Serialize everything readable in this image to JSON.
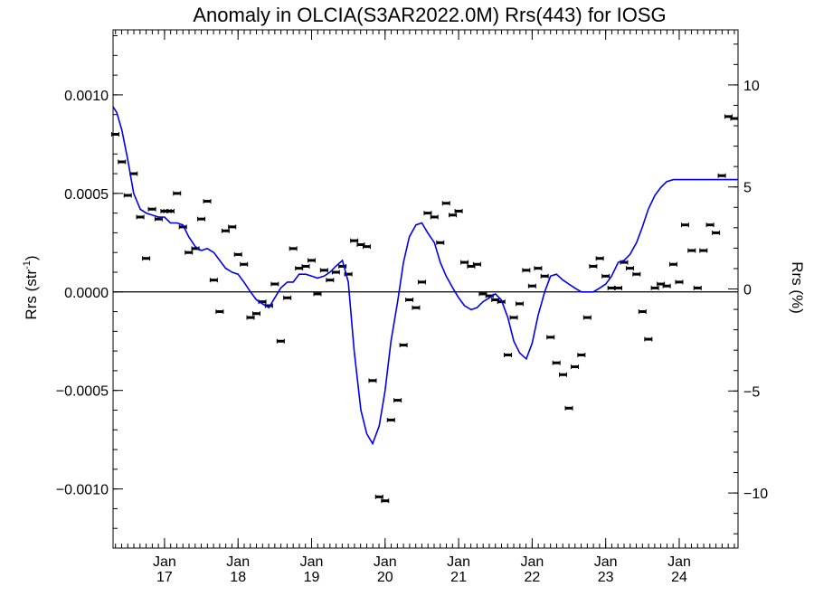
{
  "chart_data": {
    "type": "scatter",
    "title": "Anomaly in OLCIA(S3AR2022.0M) Rrs(443) for IOSG",
    "ylabel_left": "Rrs (str",
    "ylabel_left_sup": "-1",
    "ylabel_left_close": ")",
    "ylabel_right": "Rrs (%)",
    "xlim": [
      2016.3,
      2024.8
    ],
    "ylim": [
      -0.0013,
      0.00133
    ],
    "ylim_right": [
      -12.7,
      12.7
    ],
    "zero_line": true,
    "grid": false,
    "legend": "none",
    "y_ticks_left": [
      {
        "value": -0.001,
        "label": "−0.0010"
      },
      {
        "value": -0.0005,
        "label": "−0.0005"
      },
      {
        "value": 0,
        "label": "0.0000"
      },
      {
        "value": 0.0005,
        "label": "0.0005"
      },
      {
        "value": 0.001,
        "label": "0.0010"
      }
    ],
    "y_ticks_right": [
      {
        "value": -10,
        "label": "−10"
      },
      {
        "value": -5,
        "label": "−5"
      },
      {
        "value": 0,
        "label": "0"
      },
      {
        "value": 5,
        "label": "5"
      },
      {
        "value": 10,
        "label": "10"
      }
    ],
    "x_ticks": [
      {
        "value": 2017.0,
        "month": "Jan",
        "year": "17"
      },
      {
        "value": 2018.0,
        "month": "Jan",
        "year": "18"
      },
      {
        "value": 2019.0,
        "month": "Jan",
        "year": "19"
      },
      {
        "value": 2020.0,
        "month": "Jan",
        "year": "20"
      },
      {
        "value": 2021.0,
        "month": "Jan",
        "year": "21"
      },
      {
        "value": 2022.0,
        "month": "Jan",
        "year": "22"
      },
      {
        "value": 2023.0,
        "month": "Jan",
        "year": "23"
      },
      {
        "value": 2024.0,
        "month": "Jan",
        "year": "24"
      }
    ],
    "series": [
      {
        "kind": "points",
        "color": "#000000",
        "x": [
          2016.33,
          2016.42,
          2016.5,
          2016.58,
          2016.67,
          2016.75,
          2016.83,
          2016.92,
          2017.0,
          2017.04,
          2017.08,
          2017.17,
          2017.25,
          2017.33,
          2017.42,
          2017.5,
          2017.58,
          2017.67,
          2017.75,
          2017.83,
          2017.92,
          2018.0,
          2018.08,
          2018.17,
          2018.25,
          2018.33,
          2018.42,
          2018.5,
          2018.58,
          2018.67,
          2018.75,
          2018.83,
          2018.92,
          2019.0,
          2019.08,
          2019.17,
          2019.25,
          2019.33,
          2019.42,
          2019.5,
          2019.58,
          2019.67,
          2019.75,
          2019.83,
          2019.92,
          2020.0,
          2020.08,
          2020.17,
          2020.25,
          2020.33,
          2020.42,
          2020.5,
          2020.58,
          2020.67,
          2020.75,
          2020.83,
          2020.92,
          2021.0,
          2021.08,
          2021.17,
          2021.25,
          2021.33,
          2021.42,
          2021.5,
          2021.58,
          2021.67,
          2021.75,
          2021.83,
          2021.92,
          2022.0,
          2022.08,
          2022.17,
          2022.25,
          2022.33,
          2022.42,
          2022.5,
          2022.58,
          2022.67,
          2022.75,
          2022.83,
          2022.92,
          2023.0,
          2023.08,
          2023.17,
          2023.25,
          2023.33,
          2023.42,
          2023.5,
          2023.58,
          2023.67,
          2023.75,
          2023.83,
          2023.92,
          2024.0,
          2024.08,
          2024.17,
          2024.25,
          2024.33,
          2024.42,
          2024.5,
          2024.58,
          2024.67,
          2024.75
        ],
        "y": [
          0.0008,
          0.00066,
          0.00049,
          0.0006,
          0.00038,
          0.00017,
          0.00042,
          0.00037,
          0.00041,
          0.00041,
          0.00041,
          0.0005,
          0.00033,
          0.0002,
          0.00022,
          0.00037,
          0.00046,
          6e-05,
          -0.0001,
          0.00031,
          0.00033,
          0.00019,
          0.00014,
          -0.00013,
          -0.00011,
          -5e-05,
          -7e-05,
          4e-05,
          -0.00025,
          -3e-05,
          0.00022,
          0.00012,
          0.00013,
          0.00016,
          -1e-05,
          0.00011,
          6e-05,
          0.0001,
          0.00013,
          9e-05,
          0.00026,
          0.00024,
          0.00023,
          -0.00045,
          -0.00104,
          -0.00106,
          -0.00065,
          -0.00055,
          -0.00027,
          -4e-05,
          -8e-05,
          5e-05,
          0.0004,
          0.00038,
          0.00025,
          0.00045,
          0.00039,
          0.00041,
          0.00015,
          0.00013,
          0.00014,
          -1e-05,
          -2e-05,
          -4e-05,
          -5e-05,
          -0.00032,
          -0.00013,
          -6e-05,
          0.00011,
          3e-05,
          0.00012,
          8e-05,
          -0.00023,
          -0.00036,
          -0.00042,
          -0.00059,
          -0.00038,
          -0.00032,
          -0.00013,
          0.00013,
          0.00017,
          8e-05,
          2e-05,
          2e-05,
          0.00015,
          0.00012,
          9e-05,
          -0.0001,
          -0.00024,
          2e-05,
          4e-05,
          3e-05,
          0.00014,
          5e-05,
          0.00034,
          0.00021,
          2e-05,
          0.00021,
          0.00034,
          0.0003,
          0.00059,
          0.00089,
          0.00088
        ]
      },
      {
        "kind": "line",
        "color": "#0000ee",
        "x": [
          2016.3,
          2016.35,
          2016.42,
          2016.5,
          2016.58,
          2016.67,
          2016.75,
          2016.83,
          2016.92,
          2017.0,
          2017.08,
          2017.17,
          2017.25,
          2017.33,
          2017.42,
          2017.5,
          2017.58,
          2017.67,
          2017.75,
          2017.83,
          2017.92,
          2018.0,
          2018.08,
          2018.17,
          2018.25,
          2018.33,
          2018.42,
          2018.5,
          2018.58,
          2018.67,
          2018.75,
          2018.83,
          2018.92,
          2019.0,
          2019.08,
          2019.17,
          2019.25,
          2019.33,
          2019.42,
          2019.5,
          2019.58,
          2019.67,
          2019.75,
          2019.83,
          2019.92,
          2020.0,
          2020.08,
          2020.17,
          2020.25,
          2020.33,
          2020.42,
          2020.5,
          2020.58,
          2020.67,
          2020.75,
          2020.83,
          2020.92,
          2021.0,
          2021.08,
          2021.17,
          2021.25,
          2021.33,
          2021.42,
          2021.5,
          2021.58,
          2021.67,
          2021.75,
          2021.83,
          2021.92,
          2022.0,
          2022.08,
          2022.17,
          2022.25,
          2022.33,
          2022.42,
          2022.5,
          2022.58,
          2022.67,
          2022.75,
          2022.83,
          2022.92,
          2023.0,
          2023.08,
          2023.17,
          2023.25,
          2023.33,
          2023.42,
          2023.5,
          2023.58,
          2023.67,
          2023.75,
          2023.83,
          2023.92,
          2024.0,
          2024.08,
          2024.17,
          2024.25,
          2024.33,
          2024.42,
          2024.5,
          2024.58,
          2024.67,
          2024.75,
          2024.8
        ],
        "y": [
          0.00094,
          0.00091,
          0.00082,
          0.00067,
          0.0005,
          0.00042,
          0.0004,
          0.00039,
          0.00038,
          0.00038,
          0.00035,
          0.00035,
          0.00034,
          0.00028,
          0.00023,
          0.00021,
          0.00022,
          0.0002,
          0.00016,
          0.00012,
          0.0001,
          9e-05,
          5e-05,
          0.0,
          -4e-05,
          -6e-05,
          -8e-05,
          -3e-05,
          2e-05,
          5e-05,
          5e-05,
          9e-05,
          9e-05,
          8e-05,
          7e-05,
          8e-05,
          0.0001,
          0.00013,
          0.00016,
          5e-05,
          -0.0003,
          -0.0006,
          -0.00072,
          -0.00077,
          -0.00068,
          -0.0005,
          -0.00025,
          -5e-05,
          0.00015,
          0.00028,
          0.00034,
          0.00035,
          0.0003,
          0.00025,
          0.00015,
          8e-05,
          2e-05,
          -3e-05,
          -7e-05,
          -9e-05,
          -8e-05,
          -5e-05,
          -3e-05,
          -1e-05,
          -4e-05,
          -0.00013,
          -0.00025,
          -0.00031,
          -0.00034,
          -0.00026,
          -0.00012,
          0.0,
          8e-05,
          9e-05,
          6e-05,
          4e-05,
          2e-05,
          0.0,
          0.0,
          0.0,
          2e-05,
          4e-05,
          8e-05,
          0.00015,
          0.00016,
          0.00019,
          0.00025,
          0.00033,
          0.00042,
          0.00049,
          0.00053,
          0.00056,
          0.00057,
          0.00057,
          0.00057,
          0.00057,
          0.00057,
          0.00057,
          0.00057,
          0.00057,
          0.00057,
          0.00057,
          0.00057,
          0.00057
        ]
      }
    ]
  }
}
